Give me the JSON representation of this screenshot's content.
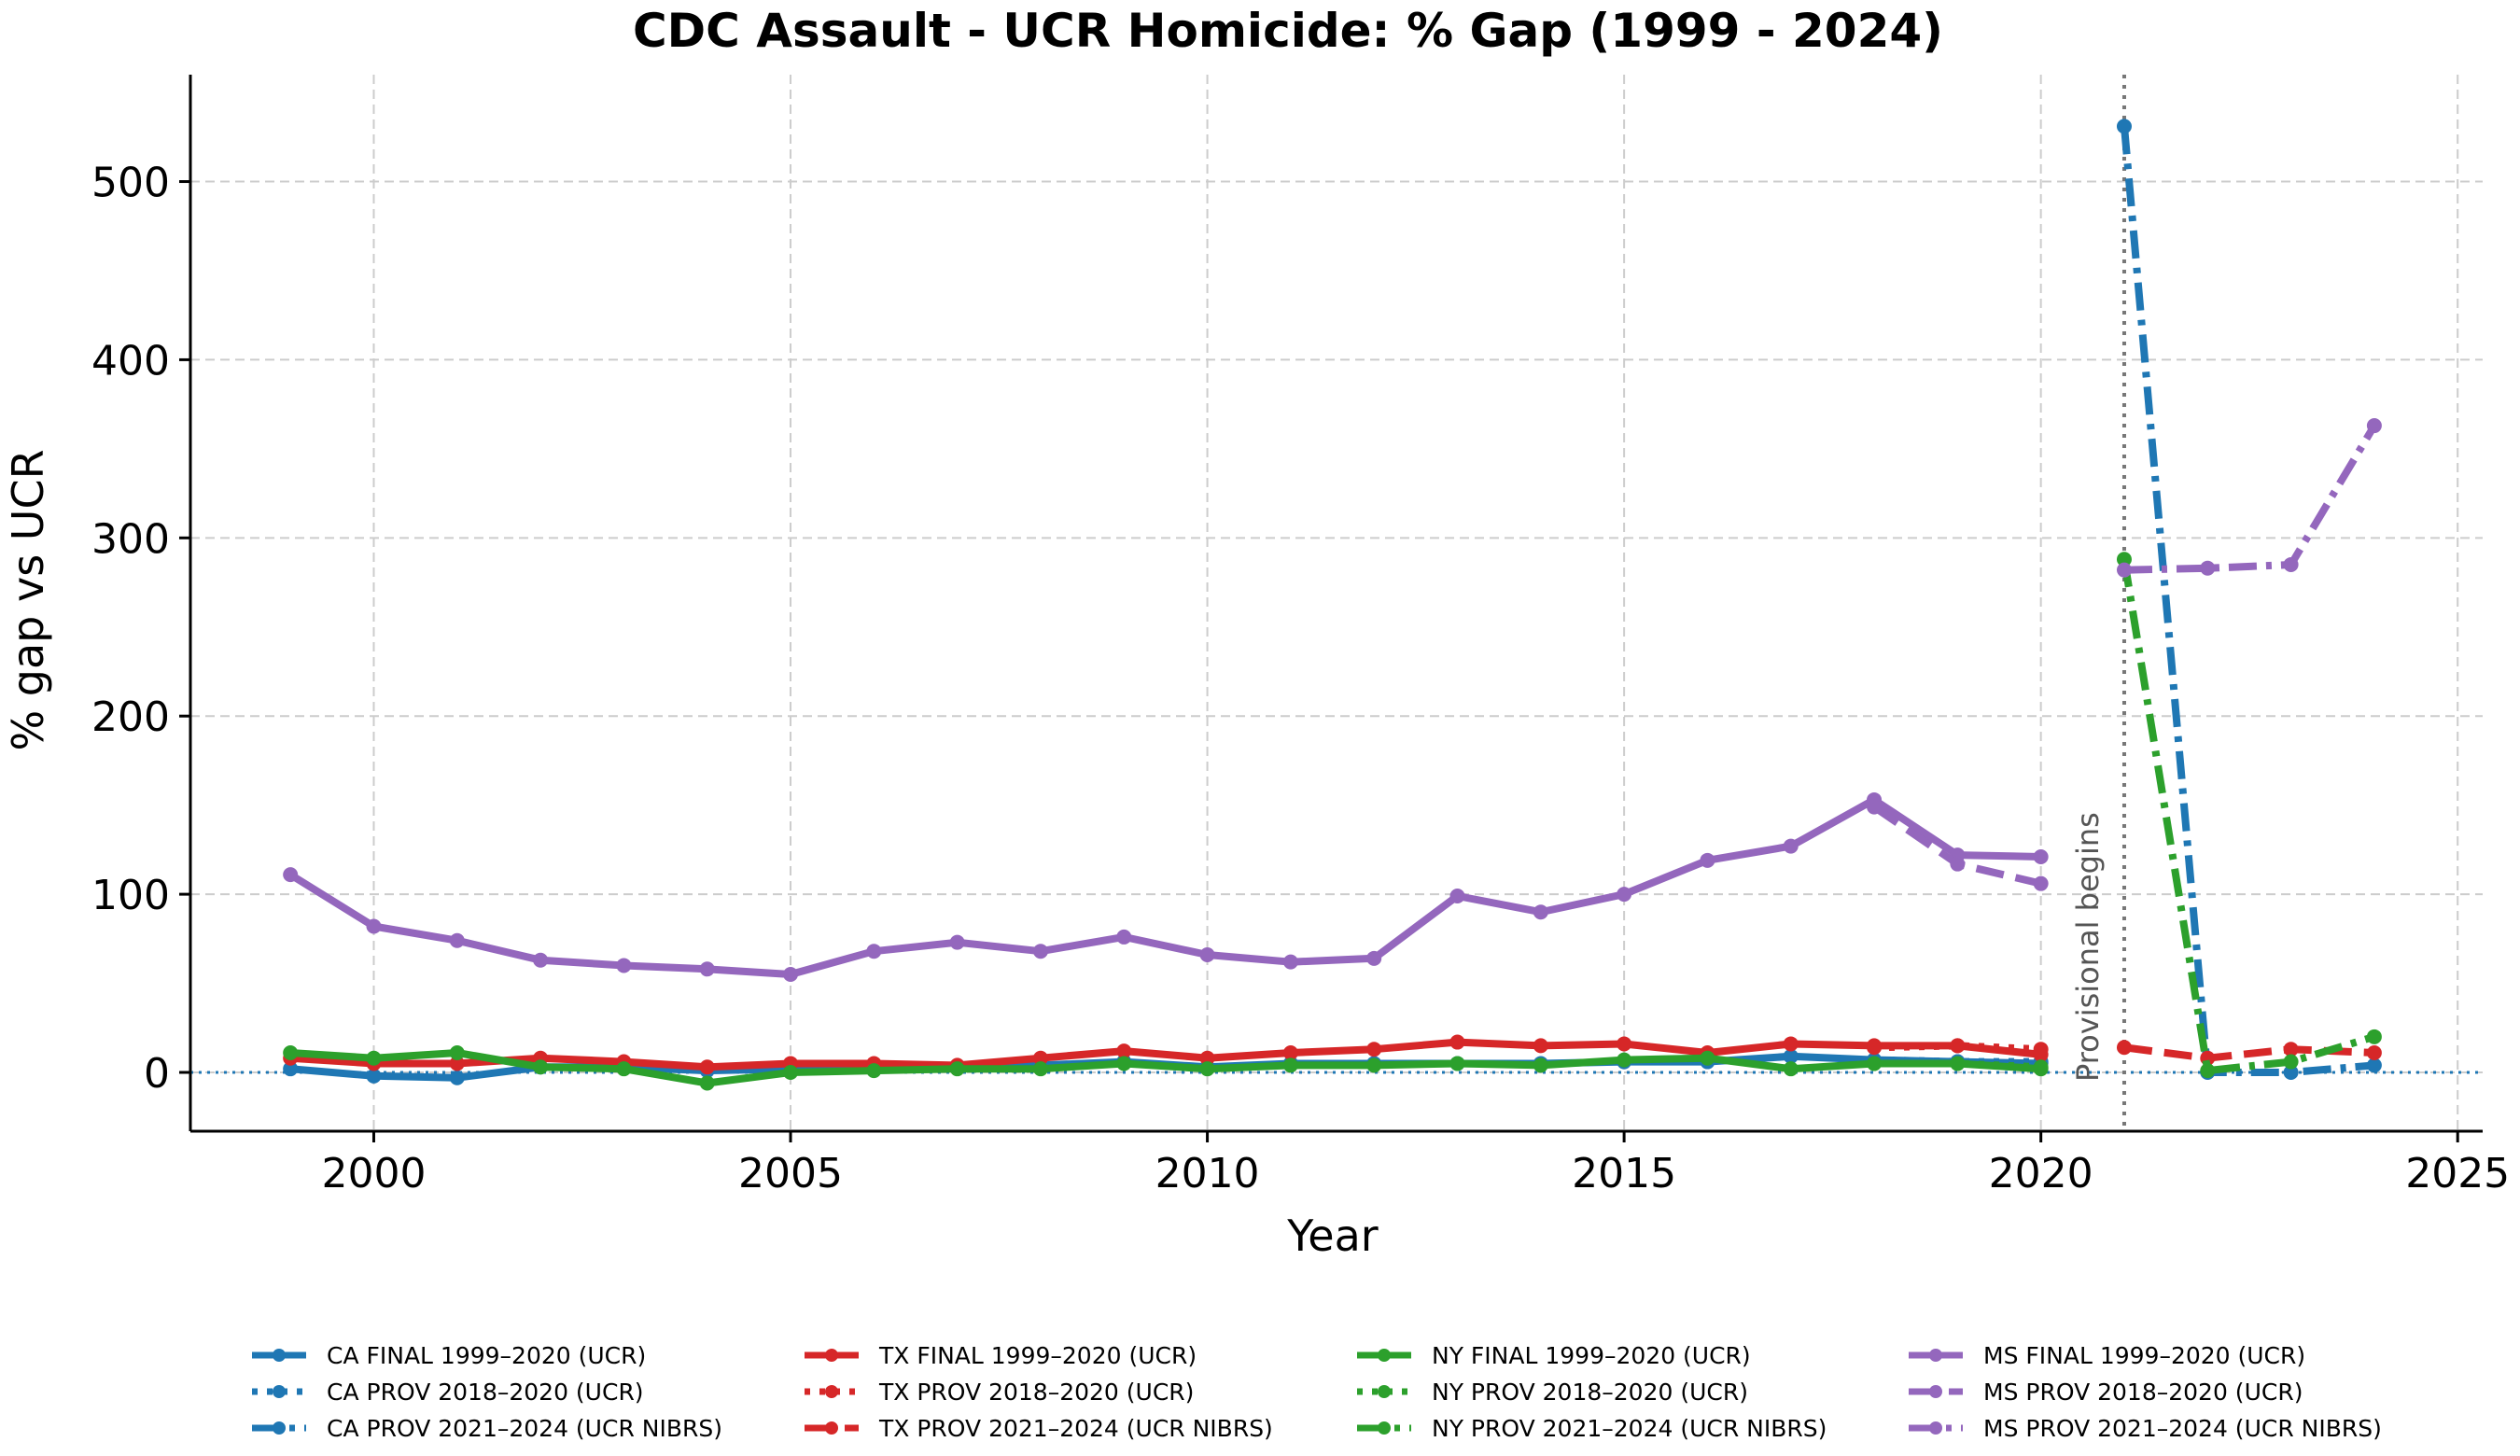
{
  "chart_data": {
    "type": "line",
    "title": "CDC Assault - UCR Homicide: % Gap (1999 - 2024)",
    "xlabel": "Year",
    "ylabel": "% gap vs UCR",
    "xlim": [
      1997.8,
      2025.3
    ],
    "ylim": [
      -33,
      560
    ],
    "xticks": [
      2000,
      2005,
      2010,
      2015,
      2020,
      2025
    ],
    "yticks": [
      0,
      100,
      200,
      300,
      400,
      500
    ],
    "grid": true,
    "legend_position": "bottom",
    "zero_line": 0,
    "vline": {
      "x": 2021,
      "label": "Provisional begins"
    },
    "series": [
      {
        "name": "CA FINAL 1999–2020 (UCR)",
        "color": "#1f77b4",
        "style": "solid",
        "x": [
          1999,
          2000,
          2001,
          2002,
          2003,
          2004,
          2005,
          2006,
          2007,
          2008,
          2009,
          2010,
          2011,
          2012,
          2013,
          2014,
          2015,
          2016,
          2017,
          2018,
          2019,
          2020
        ],
        "y": [
          2,
          -2,
          -3,
          3,
          3,
          1,
          2,
          3,
          3,
          4,
          6,
          3,
          5,
          5,
          5,
          5,
          6,
          6,
          9,
          7,
          6,
          5
        ]
      },
      {
        "name": "CA PROV 2018–2020 (UCR)",
        "color": "#1f77b4",
        "style": "dotted",
        "x": [
          2018,
          2019,
          2020
        ],
        "y": [
          7,
          6,
          6
        ]
      },
      {
        "name": "CA PROV 2021–2024 (UCR NIBRS)",
        "color": "#1f77b4",
        "style": "dashdot",
        "x": [
          2021,
          2022,
          2023,
          2024
        ],
        "y": [
          531,
          0,
          0,
          4
        ]
      },
      {
        "name": "TX FINAL 1999–2020 (UCR)",
        "color": "#d62728",
        "style": "solid",
        "x": [
          1999,
          2000,
          2001,
          2002,
          2003,
          2004,
          2005,
          2006,
          2007,
          2008,
          2009,
          2010,
          2011,
          2012,
          2013,
          2014,
          2015,
          2016,
          2017,
          2018,
          2019,
          2020
        ],
        "y": [
          8,
          5,
          5,
          8,
          6,
          3,
          5,
          5,
          4,
          8,
          12,
          8,
          11,
          13,
          17,
          15,
          16,
          11,
          16,
          15,
          15,
          10
        ]
      },
      {
        "name": "TX PROV 2018–2020 (UCR)",
        "color": "#d62728",
        "style": "dotted",
        "x": [
          2018,
          2019,
          2020
        ],
        "y": [
          14,
          15,
          13
        ]
      },
      {
        "name": "TX PROV 2021–2024 (UCR NIBRS)",
        "color": "#d62728",
        "style": "dashed",
        "x": [
          2021,
          2022,
          2023,
          2024
        ],
        "y": [
          14,
          8,
          13,
          11
        ]
      },
      {
        "name": "NY FINAL 1999–2020 (UCR)",
        "color": "#2ca02c",
        "style": "solid",
        "x": [
          1999,
          2000,
          2001,
          2002,
          2003,
          2004,
          2005,
          2006,
          2007,
          2008,
          2009,
          2010,
          2011,
          2012,
          2013,
          2014,
          2015,
          2016,
          2017,
          2018,
          2019,
          2020
        ],
        "y": [
          11,
          8,
          11,
          3,
          2,
          -6,
          0,
          1,
          2,
          2,
          5,
          2,
          4,
          4,
          5,
          4,
          7,
          8,
          2,
          5,
          5,
          2
        ]
      },
      {
        "name": "NY PROV 2018–2020 (UCR)",
        "color": "#2ca02c",
        "style": "dotted",
        "x": [
          2018,
          2019,
          2020
        ],
        "y": [
          5,
          5,
          3
        ]
      },
      {
        "name": "NY PROV 2021–2024 (UCR NIBRS)",
        "color": "#2ca02c",
        "style": "dashdot",
        "x": [
          2021,
          2022,
          2023,
          2024
        ],
        "y": [
          288,
          1,
          6,
          20
        ]
      },
      {
        "name": "MS FINAL 1999–2020 (UCR)",
        "color": "#9467bd",
        "style": "solid",
        "x": [
          1999,
          2000,
          2001,
          2002,
          2003,
          2004,
          2005,
          2006,
          2007,
          2008,
          2009,
          2010,
          2011,
          2012,
          2013,
          2014,
          2015,
          2016,
          2017,
          2018,
          2019,
          2020
        ],
        "y": [
          111,
          82,
          74,
          63,
          60,
          58,
          55,
          68,
          73,
          68,
          76,
          66,
          62,
          64,
          99,
          90,
          100,
          119,
          127,
          153,
          122,
          121
        ]
      },
      {
        "name": "MS PROV 2018–2020 (UCR)",
        "color": "#9467bd",
        "style": "dashed",
        "x": [
          2018,
          2019,
          2020
        ],
        "y": [
          149,
          117,
          106
        ]
      },
      {
        "name": "MS PROV 2021–2024 (UCR NIBRS)",
        "color": "#9467bd",
        "style": "dashdot",
        "x": [
          2021,
          2022,
          2023,
          2024
        ],
        "y": [
          282,
          283,
          285,
          363
        ]
      }
    ]
  }
}
